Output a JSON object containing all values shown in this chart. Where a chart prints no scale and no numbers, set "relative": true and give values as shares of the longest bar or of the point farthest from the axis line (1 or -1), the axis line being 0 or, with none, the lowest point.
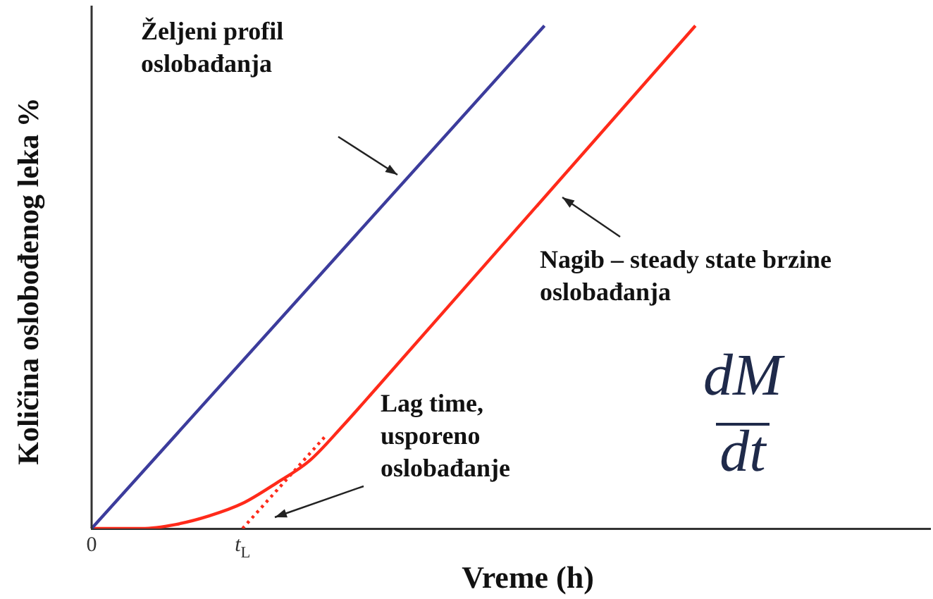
{
  "chart_data": {
    "type": "line",
    "relative": true,
    "xlabel": "Vreme (h)",
    "ylabel": "Količina oslobođenog leka %",
    "categories": [
      "0",
      null,
      null,
      null,
      null,
      null,
      null,
      null,
      null,
      "t$_{L}$",
      null,
      null,
      null,
      null,
      null,
      null,
      null,
      null,
      null,
      null,
      null,
      null,
      null,
      null,
      null,
      null,
      null,
      null,
      null,
      null,
      null,
      null,
      null,
      null,
      null,
      null,
      null,
      null,
      null,
      null,
      null,
      null,
      null,
      null,
      null,
      null,
      null,
      null,
      null,
      null,
      null
    ],
    "series": [
      {
        "color": "#3c3c9c",
        "values": [
          0,
          null,
          null,
          null,
          null,
          null,
          null,
          null,
          null,
          null,
          null,
          null,
          null,
          null,
          null,
          null,
          null,
          null,
          null,
          null,
          null,
          null,
          null,
          null,
          null,
          null,
          null,
          1,
          null,
          null,
          null,
          null,
          null,
          null,
          null,
          null,
          null,
          null,
          null,
          null,
          null,
          null,
          null,
          null,
          null,
          null,
          null,
          null,
          null,
          null,
          null
        ]
      },
      {
        "color": "#ff2a1a",
        "values": [
          0,
          null,
          null,
          0,
          null,
          0.008,
          null,
          0.025,
          null,
          0.05,
          null,
          0.09,
          null,
          0.135,
          null,
          0.205,
          null,
          0.28,
          null,
          null,
          null,
          null,
          null,
          null,
          null,
          null,
          null,
          null,
          null,
          null,
          null,
          null,
          null,
          null,
          null,
          null,
          1,
          null,
          null,
          null,
          null,
          null,
          null,
          null,
          null,
          null,
          null,
          null,
          null,
          null,
          null
        ]
      },
      {
        "color": "#ff2a1a",
        "line_style": "dotted",
        "values": [
          null,
          null,
          null,
          null,
          null,
          null,
          null,
          null,
          null,
          0,
          null,
          null,
          null,
          null,
          0.186,
          null,
          null,
          null,
          null,
          null,
          null,
          null,
          null,
          null,
          null,
          null,
          null,
          null,
          null,
          null,
          null,
          null,
          null,
          null,
          null,
          null,
          null,
          null,
          null,
          null,
          null,
          null,
          null,
          null,
          null,
          null,
          null,
          null,
          null,
          null,
          null
        ]
      }
    ],
    "annotations": [
      "Željeni profil\noslobađanja",
      "Nagib – steady state brzine\noslobađanja",
      "dM",
      "dt",
      "Lag time,\nusporeno\noslobađanje"
    ],
    "grid": false,
    "legend": false,
    "marker": "none"
  }
}
